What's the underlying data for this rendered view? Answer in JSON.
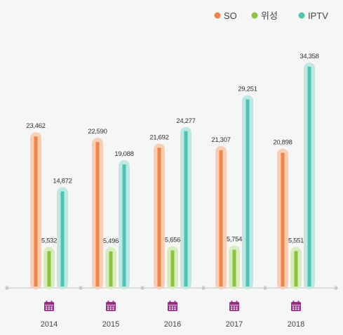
{
  "chart_data": {
    "type": "bar",
    "categories": [
      "2014",
      "2015",
      "2016",
      "2017",
      "2018"
    ],
    "series": [
      {
        "name": "SO",
        "color": "#f0834a",
        "halo": "#f8cfb6",
        "values": [
          23462,
          22590,
          21692,
          21307,
          20898
        ]
      },
      {
        "name": "위성",
        "color": "#8cc43f",
        "halo": "#d9ecbf",
        "values": [
          5532,
          5496,
          5656,
          5754,
          5551
        ]
      },
      {
        "name": "IPTV",
        "color": "#4fc3b3",
        "halo": "#bfe8e2",
        "values": [
          14872,
          19088,
          24277,
          29251,
          34358
        ]
      }
    ],
    "value_labels": [
      [
        "23,462",
        "22,590",
        "21,692",
        "21,307",
        "20,898"
      ],
      [
        "5,532",
        "5,496",
        "5,656",
        "5,754",
        "5,551"
      ],
      [
        "14,872",
        "19,088",
        "24,277",
        "29,251",
        "34,358"
      ]
    ],
    "ylim": [
      0,
      36000
    ],
    "legend_position": "top-right",
    "grid": false,
    "category_icon": "calendar-icon",
    "icon_color": "#9b2c86",
    "axis_color": "#cccccc"
  }
}
